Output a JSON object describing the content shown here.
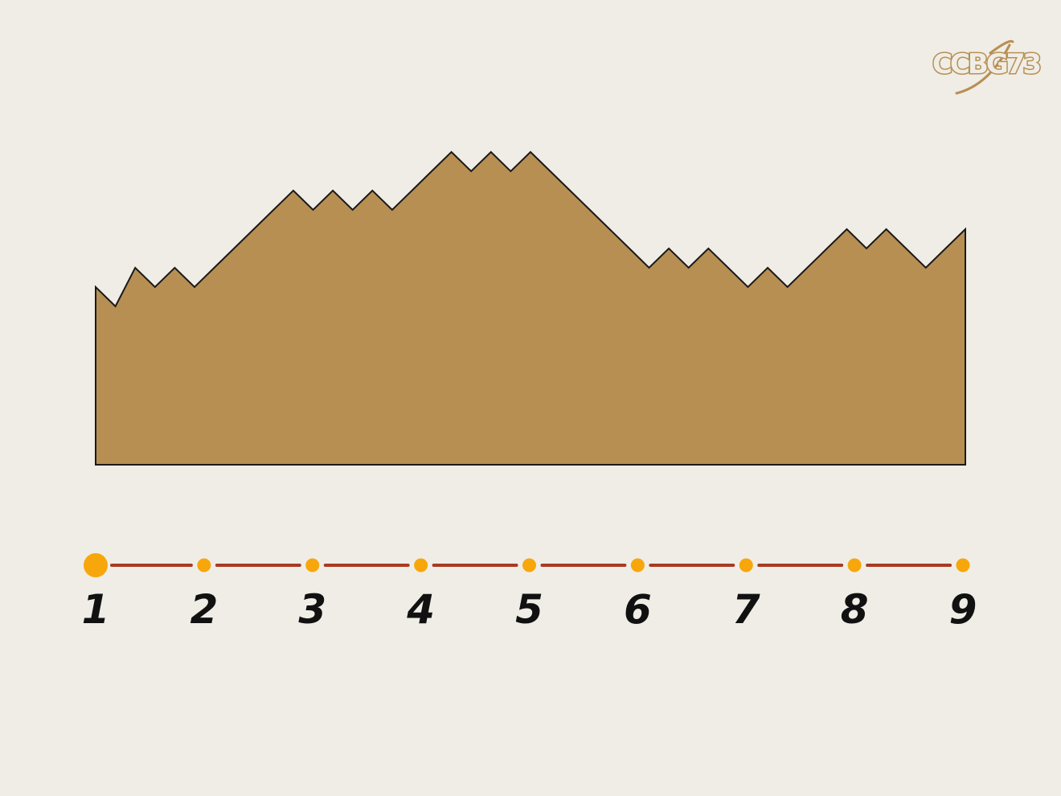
{
  "logo": {
    "text": "CCBG73"
  },
  "terrain": {
    "fill_color": "#b88f53",
    "stroke_color": "#1a1a1a",
    "heights": [
      0,
      -1,
      1,
      0,
      1,
      0,
      1,
      2,
      3,
      4,
      5,
      4,
      5,
      4,
      5,
      4,
      5,
      6,
      7,
      6,
      7,
      6,
      7,
      6,
      5,
      4,
      3,
      2,
      1,
      2,
      1,
      2,
      1,
      0,
      1,
      0,
      1,
      2,
      3,
      2,
      3,
      2,
      1,
      2,
      3
    ]
  },
  "progress": {
    "steps": [
      "1",
      "2",
      "3",
      "4",
      "5",
      "6",
      "7",
      "8",
      "9"
    ],
    "current_step": 1,
    "dot_color": "#f7a60c",
    "line_color": "#a83a22",
    "label_color": "#111111"
  }
}
